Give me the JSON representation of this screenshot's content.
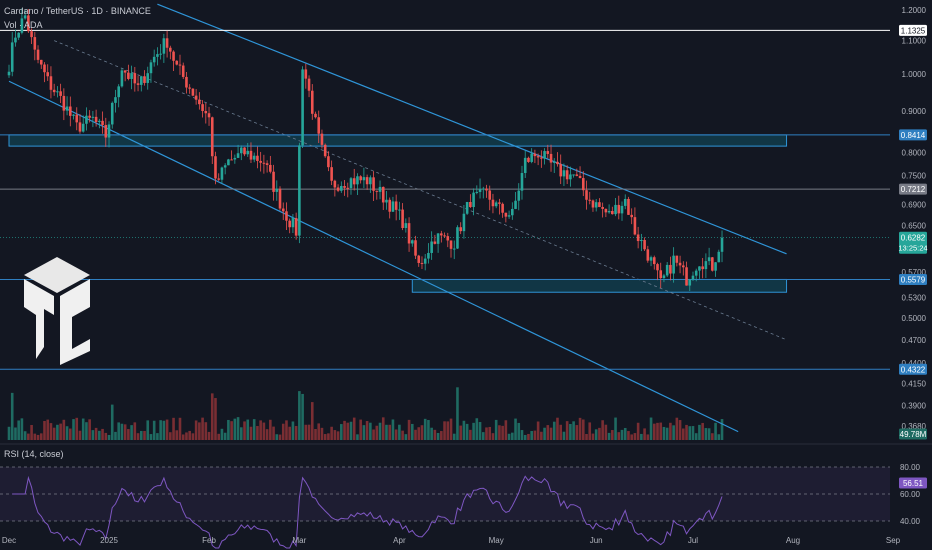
{
  "header": {
    "symbol_line": "Cardano / TetherUS · 1D · BINANCE",
    "volume_line": "Vol · ADA",
    "rsi_line": "RSI (14, close)"
  },
  "chart_data": {
    "type": "candlestick",
    "price_axis": {
      "labels": [
        "1.2000",
        "1.1000",
        "1.0000",
        "0.9000",
        "0.8000",
        "0.7500",
        "0.6900",
        "0.6500",
        "0.5700",
        "0.5300",
        "0.5000",
        "0.4700",
        "0.4400",
        "0.4150",
        "0.3900",
        "0.3680"
      ],
      "values": [
        1.2,
        1.1,
        1.0,
        0.9,
        0.8,
        0.75,
        0.69,
        0.65,
        0.57,
        0.53,
        0.5,
        0.47,
        0.44,
        0.415,
        0.39,
        0.368
      ],
      "scale": "log"
    },
    "time_axis": {
      "labels": [
        "Dec",
        "2025",
        "Feb",
        "Mar",
        "Apr",
        "May",
        "Jun",
        "Jul",
        "Aug",
        "Sep"
      ],
      "dates": [
        "2024-12-01",
        "2025-01-01",
        "2025-02-01",
        "2025-03-01",
        "2025-04-01",
        "2025-05-01",
        "2025-06-01",
        "2025-07-01",
        "2025-08-01",
        "2025-09-01"
      ]
    },
    "anchors": [
      [
        "2024-12-01",
        1.03
      ],
      [
        "2024-12-03",
        1.12
      ],
      [
        "2024-12-06",
        1.18
      ],
      [
        "2024-12-09",
        1.06
      ],
      [
        "2024-12-13",
        0.98
      ],
      [
        "2024-12-18",
        0.92
      ],
      [
        "2024-12-22",
        0.86
      ],
      [
        "2024-12-27",
        0.88
      ],
      [
        "2024-12-31",
        0.84
      ],
      [
        "2025-01-05",
        1.02
      ],
      [
        "2025-01-10",
        0.96
      ],
      [
        "2025-01-15",
        1.05
      ],
      [
        "2025-01-19",
        1.1
      ],
      [
        "2025-01-22",
        1.02
      ],
      [
        "2025-01-27",
        0.95
      ],
      [
        "2025-02-01",
        0.88
      ],
      [
        "2025-02-03",
        0.73
      ],
      [
        "2025-02-07",
        0.78
      ],
      [
        "2025-02-12",
        0.8
      ],
      [
        "2025-02-18",
        0.78
      ],
      [
        "2025-02-24",
        0.68
      ],
      [
        "2025-02-28",
        0.64
      ],
      [
        "2025-03-02",
        1.03
      ],
      [
        "2025-03-04",
        0.95
      ],
      [
        "2025-03-07",
        0.83
      ],
      [
        "2025-03-11",
        0.73
      ],
      [
        "2025-03-16",
        0.74
      ],
      [
        "2025-03-22",
        0.74
      ],
      [
        "2025-03-28",
        0.7
      ],
      [
        "2025-04-02",
        0.66
      ],
      [
        "2025-04-07",
        0.58
      ],
      [
        "2025-04-12",
        0.63
      ],
      [
        "2025-04-18",
        0.62
      ],
      [
        "2025-04-23",
        0.7
      ],
      [
        "2025-04-28",
        0.71
      ],
      [
        "2025-05-02",
        0.68
      ],
      [
        "2025-05-06",
        0.67
      ],
      [
        "2025-05-10",
        0.78
      ],
      [
        "2025-05-14",
        0.8
      ],
      [
        "2025-05-20",
        0.76
      ],
      [
        "2025-05-25",
        0.75
      ],
      [
        "2025-05-30",
        0.7
      ],
      [
        "2025-06-05",
        0.67
      ],
      [
        "2025-06-10",
        0.7
      ],
      [
        "2025-06-13",
        0.64
      ],
      [
        "2025-06-17",
        0.6
      ],
      [
        "2025-06-21",
        0.55
      ],
      [
        "2025-06-25",
        0.59
      ],
      [
        "2025-06-29",
        0.56
      ],
      [
        "2025-07-03",
        0.59
      ],
      [
        "2025-07-07",
        0.58
      ],
      [
        "2025-07-10",
        0.6282
      ]
    ],
    "last_price": "0.6282",
    "countdown": "13:25:24",
    "levels": [
      {
        "label": "1.1325",
        "price": 1.1325,
        "color": "#ffffff"
      },
      {
        "label": "0.8414",
        "price": 0.8414,
        "color": "#2f7fc1"
      },
      {
        "label": "0.7212",
        "price": 0.7212,
        "color": "#787b86"
      },
      {
        "label": "0.5579",
        "price": 0.5579,
        "color": "#2f7fc1"
      },
      {
        "label": "0.4322",
        "price": 0.4322,
        "color": "#2f7fc1"
      }
    ],
    "zones": [
      {
        "from": "2024-12-01",
        "to": "2025-07-30",
        "top": 0.8414,
        "bottom": 0.815
      },
      {
        "from": "2025-04-05",
        "to": "2025-07-30",
        "top": 0.5579,
        "bottom": 0.538
      }
    ],
    "channel": {
      "upper": [
        [
          "2025-01-16",
          1.22
        ],
        [
          "2025-07-30",
          0.6
        ]
      ],
      "lower": [
        [
          "2024-12-01",
          0.98
        ],
        [
          "2025-07-15",
          0.362
        ]
      ],
      "mid": [
        [
          "2024-12-15",
          1.1
        ],
        [
          "2025-07-30",
          0.47
        ]
      ]
    },
    "volume_label": "49.78M",
    "rsi": {
      "axis_labels": [
        "80.00",
        "60.00",
        "40.00"
      ],
      "axis_values": [
        80,
        60,
        40
      ],
      "last": "56.51"
    },
    "colors": {
      "up": "#26a69a",
      "down": "#ef5350",
      "channel": "#2f95d8",
      "zone": "#0f6f86",
      "rsi": "#7e57c2",
      "background": "#131722"
    }
  }
}
